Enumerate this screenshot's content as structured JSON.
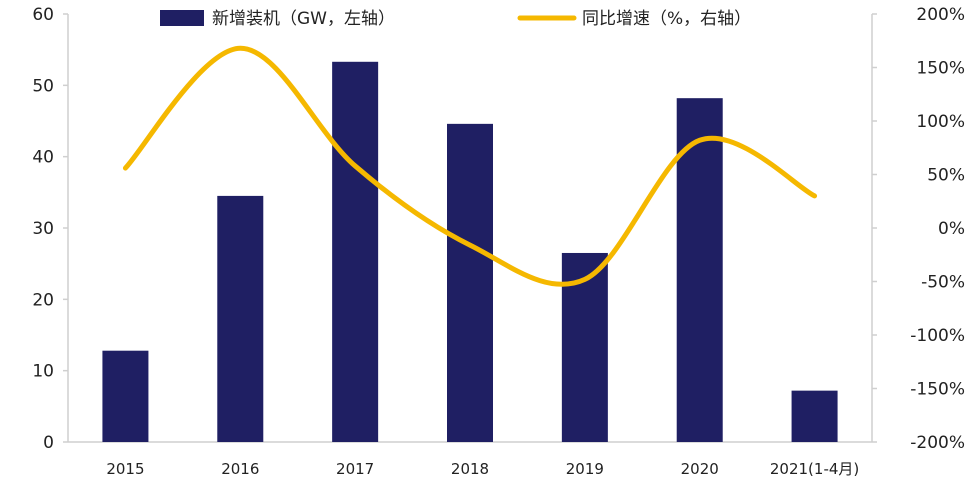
{
  "chart_data": {
    "type": "bar+line",
    "categories": [
      "2015",
      "2016",
      "2017",
      "2018",
      "2019",
      "2020",
      "2021(1-4月)"
    ],
    "series": [
      {
        "name": "新增装机（GW，左轴）",
        "type": "bar",
        "axis": "left",
        "color": "#1f1f63",
        "values": [
          12.8,
          34.5,
          53.3,
          44.6,
          26.5,
          48.2,
          7.2
        ]
      },
      {
        "name": "同比增速（%，右轴）",
        "type": "line",
        "axis": "right",
        "color": "#f5b800",
        "values": [
          56,
          168,
          58,
          -16,
          -48,
          82,
          30
        ]
      }
    ],
    "left_axis": {
      "ylim": [
        0,
        60
      ],
      "ticks": [
        0,
        10,
        20,
        30,
        40,
        50,
        60
      ],
      "tick_labels": [
        "0",
        "10",
        "20",
        "30",
        "40",
        "50",
        "60"
      ]
    },
    "right_axis": {
      "ylim": [
        -200,
        200
      ],
      "ticks": [
        -200,
        -150,
        -100,
        -50,
        0,
        50,
        100,
        150,
        200
      ],
      "tick_labels": [
        "-200%",
        "-150%",
        "-100%",
        "-50%",
        "0%",
        "50%",
        "100%",
        "150%",
        "200%"
      ]
    },
    "legend": {
      "placement": "top",
      "entries": [
        "新增装机（GW，左轴）",
        "同比增速（%，右轴）"
      ]
    },
    "grid": false
  }
}
